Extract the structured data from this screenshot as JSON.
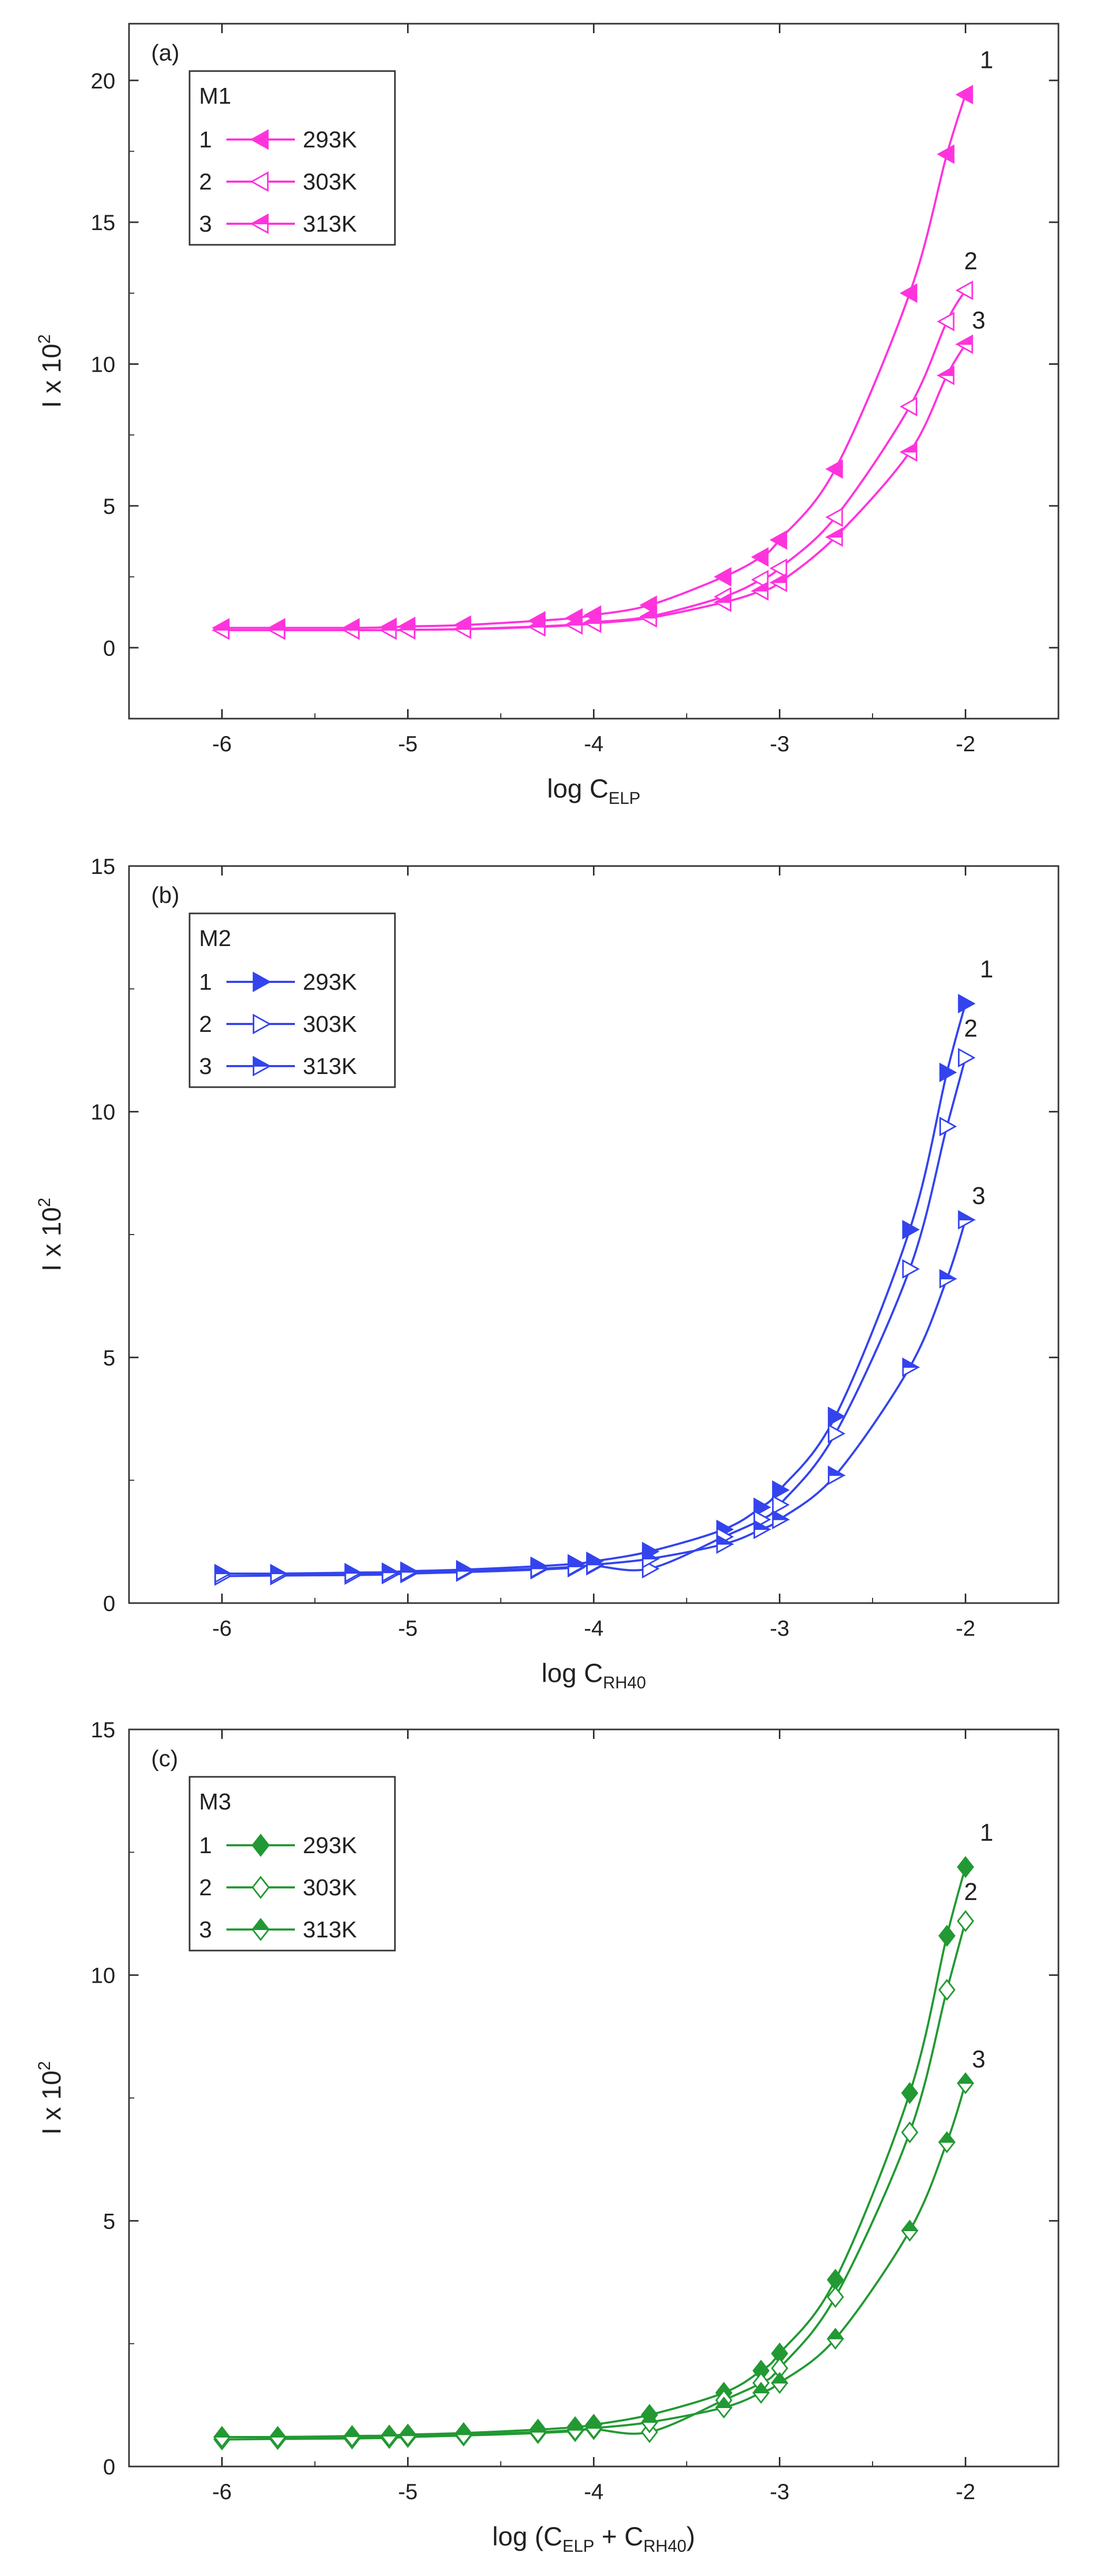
{
  "chart_data": [
    {
      "type": "line",
      "panel_label": "(a)",
      "legend_title": "M1",
      "color": "#ff33dd",
      "marker": "triangle-left",
      "xlabel": {
        "main": "log C",
        "sub": "ELP"
      },
      "ylabel": "I x 10",
      "ylabel_sup": "2",
      "xlim": [
        -6.5,
        -1.5
      ],
      "ylim": [
        -2.5,
        22
      ],
      "xticks": [
        -6,
        -5,
        -4,
        -3,
        -2
      ],
      "xtick_labels": [
        "-6",
        "-5",
        "-4",
        "-3",
        "-2"
      ],
      "yticks": [
        0,
        5,
        10,
        15,
        20
      ],
      "ytick_labels": [
        "0",
        "5",
        "10",
        "15",
        "20"
      ],
      "x": [
        -6,
        -5.7,
        -5.3,
        -5.1,
        -5,
        -4.7,
        -4.3,
        -4.1,
        -4,
        -3.7,
        -3.3,
        -3.1,
        -3,
        -2.7,
        -2.3,
        -2.1,
        -2
      ],
      "series": [
        {
          "label": "1",
          "name": "293K",
          "fill": "solid",
          "end_label": "1",
          "values": [
            0.7,
            0.7,
            0.7,
            0.72,
            0.75,
            0.8,
            0.95,
            1.05,
            1.15,
            1.5,
            2.5,
            3.2,
            3.8,
            6.3,
            12.5,
            17.4,
            19.5
          ]
        },
        {
          "label": "2",
          "name": "303K",
          "fill": "open",
          "end_label": "2",
          "values": [
            0.62,
            0.62,
            0.62,
            0.62,
            0.63,
            0.66,
            0.75,
            0.82,
            0.9,
            1.1,
            1.8,
            2.4,
            2.8,
            4.6,
            8.5,
            11.5,
            12.6
          ]
        },
        {
          "label": "3",
          "name": "313K",
          "fill": "half",
          "end_label": "3",
          "values": [
            0.62,
            0.62,
            0.62,
            0.62,
            0.63,
            0.65,
            0.73,
            0.8,
            0.86,
            1.05,
            1.6,
            2.0,
            2.3,
            3.9,
            6.9,
            9.6,
            10.7
          ]
        }
      ]
    },
    {
      "type": "line",
      "panel_label": "(b)",
      "legend_title": "M2",
      "color": "#3344ee",
      "marker": "triangle-right",
      "xlabel": {
        "main": "log C",
        "sub": "RH40"
      },
      "ylabel": "I x 10",
      "ylabel_sup": "2",
      "xlim": [
        -6.5,
        -1.5
      ],
      "ylim": [
        0,
        15
      ],
      "xticks": [
        -6,
        -5,
        -4,
        -3,
        -2
      ],
      "xtick_labels": [
        "-6",
        "-5",
        "-4",
        "-3",
        "-2"
      ],
      "yticks": [
        0,
        5,
        10,
        15
      ],
      "ytick_labels": [
        "0",
        "5",
        "10",
        "15"
      ],
      "x": [
        -6,
        -5.7,
        -5.3,
        -5.1,
        -5,
        -4.7,
        -4.3,
        -4.1,
        -4,
        -3.7,
        -3.3,
        -3.1,
        -3,
        -2.7,
        -2.3,
        -2.1,
        -2
      ],
      "series": [
        {
          "label": "1",
          "name": "293K",
          "fill": "solid",
          "end_label": "1",
          "values": [
            0.6,
            0.6,
            0.62,
            0.63,
            0.65,
            0.68,
            0.75,
            0.8,
            0.85,
            1.05,
            1.5,
            1.95,
            2.3,
            3.8,
            7.6,
            10.8,
            12.2
          ]
        },
        {
          "label": "2",
          "name": "303K",
          "fill": "open",
          "end_label": "2",
          "values": [
            0.55,
            0.56,
            0.57,
            0.58,
            0.6,
            0.63,
            0.68,
            0.72,
            0.76,
            0.7,
            1.35,
            1.7,
            2.0,
            3.45,
            6.8,
            9.7,
            11.1
          ]
        },
        {
          "label": "3",
          "name": "313K",
          "fill": "half",
          "end_label": "3",
          "values": [
            0.6,
            0.6,
            0.61,
            0.62,
            0.63,
            0.65,
            0.7,
            0.74,
            0.78,
            0.9,
            1.2,
            1.5,
            1.7,
            2.6,
            4.8,
            6.6,
            7.8
          ]
        }
      ]
    },
    {
      "type": "line",
      "panel_label": "(c)",
      "legend_title": "M3",
      "color": "#229933",
      "marker": "diamond",
      "xlabel": {
        "main": "log (C",
        "sub": "ELP",
        "mid": " + C",
        "sub2": "RH40",
        "end": ")"
      },
      "ylabel": "I x 10",
      "ylabel_sup": "2",
      "xlim": [
        -6.5,
        -1.5
      ],
      "ylim": [
        0,
        15
      ],
      "xticks": [
        -6,
        -5,
        -4,
        -3,
        -2
      ],
      "xtick_labels": [
        "-6",
        "-5",
        "-4",
        "-3",
        "-2"
      ],
      "yticks": [
        0,
        5,
        10,
        15
      ],
      "ytick_labels": [
        "0",
        "5",
        "10",
        "15"
      ],
      "x": [
        -6,
        -5.7,
        -5.3,
        -5.1,
        -5,
        -4.7,
        -4.3,
        -4.1,
        -4,
        -3.7,
        -3.3,
        -3.1,
        -3,
        -2.7,
        -2.3,
        -2.1,
        -2
      ],
      "series": [
        {
          "label": "1",
          "name": "293K",
          "fill": "solid",
          "end_label": "1",
          "values": [
            0.6,
            0.6,
            0.62,
            0.63,
            0.65,
            0.68,
            0.75,
            0.8,
            0.85,
            1.05,
            1.5,
            1.95,
            2.3,
            3.8,
            7.6,
            10.8,
            12.2
          ]
        },
        {
          "label": "2",
          "name": "303K",
          "fill": "open",
          "end_label": "2",
          "values": [
            0.55,
            0.56,
            0.57,
            0.58,
            0.6,
            0.63,
            0.68,
            0.72,
            0.76,
            0.7,
            1.35,
            1.7,
            2.0,
            3.45,
            6.8,
            9.7,
            11.1
          ]
        },
        {
          "label": "3",
          "name": "313K",
          "fill": "half",
          "end_label": "3",
          "values": [
            0.6,
            0.6,
            0.61,
            0.62,
            0.63,
            0.65,
            0.7,
            0.74,
            0.78,
            0.9,
            1.2,
            1.5,
            1.7,
            2.6,
            4.8,
            6.6,
            7.8
          ]
        }
      ]
    }
  ]
}
